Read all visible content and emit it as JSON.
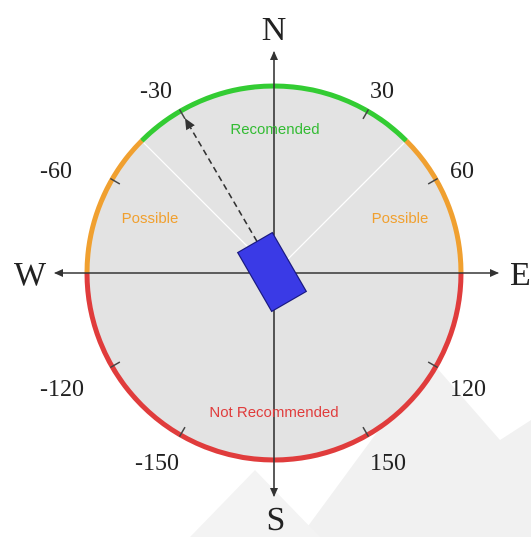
{
  "cardinal": {
    "north": "N",
    "south": "S",
    "east": "E",
    "west": "W"
  },
  "angle_labels": [
    "-30",
    "30",
    "-60",
    "60",
    "-120",
    "120",
    "-150",
    "150"
  ],
  "zones": {
    "recommended": "Recomended",
    "possible_left": "Possible",
    "possible_right": "Possible",
    "not_recommended": "Not Recommended"
  },
  "colors": {
    "recommended": "#33cc33",
    "possible": "#f0a030",
    "not_recommended": "#e03c3c",
    "dial_fill": "#e3e3e3",
    "vehicle": "#3a3ae6",
    "watermark": "#eeeeee"
  },
  "icons": {
    "vehicle": "blue-rectangle-vehicle",
    "heading_arrow": "dashed-arrow"
  }
}
